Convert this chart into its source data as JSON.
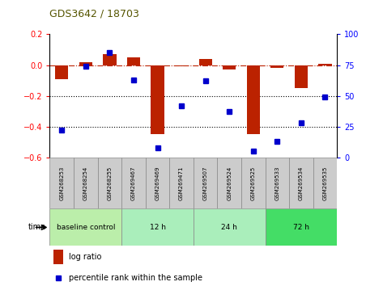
{
  "title": "GDS3642 / 18703",
  "samples": [
    "GSM268253",
    "GSM268254",
    "GSM268255",
    "GSM269467",
    "GSM269469",
    "GSM269471",
    "GSM269507",
    "GSM269524",
    "GSM269525",
    "GSM269533",
    "GSM269534",
    "GSM269535"
  ],
  "log_ratio_values": [
    -0.09,
    0.02,
    0.07,
    0.05,
    -0.45,
    -0.01,
    0.04,
    -0.03,
    -0.45,
    -0.02,
    -0.15,
    0.01
  ],
  "percentile_rank": [
    22,
    74,
    85,
    63,
    8,
    42,
    62,
    37,
    5,
    13,
    28,
    49
  ],
  "bar_color": "#bb2200",
  "dot_color": "#0000cc",
  "ylim_left": [
    -0.6,
    0.2
  ],
  "ylim_right": [
    0,
    100
  ],
  "yticks_left": [
    -0.6,
    -0.4,
    -0.2,
    0.0,
    0.2
  ],
  "yticks_right": [
    0,
    25,
    50,
    75,
    100
  ],
  "groups": [
    {
      "label": "baseline control",
      "start": 0,
      "end": 3,
      "color": "#bbeeaa"
    },
    {
      "label": "12 h",
      "start": 3,
      "end": 6,
      "color": "#aaeebb"
    },
    {
      "label": "24 h",
      "start": 6,
      "end": 9,
      "color": "#aaeebb"
    },
    {
      "label": "72 h",
      "start": 9,
      "end": 12,
      "color": "#44dd66"
    }
  ],
  "time_label": "time",
  "legend_bar_label": "log ratio",
  "legend_dot_label": "percentile rank within the sample"
}
